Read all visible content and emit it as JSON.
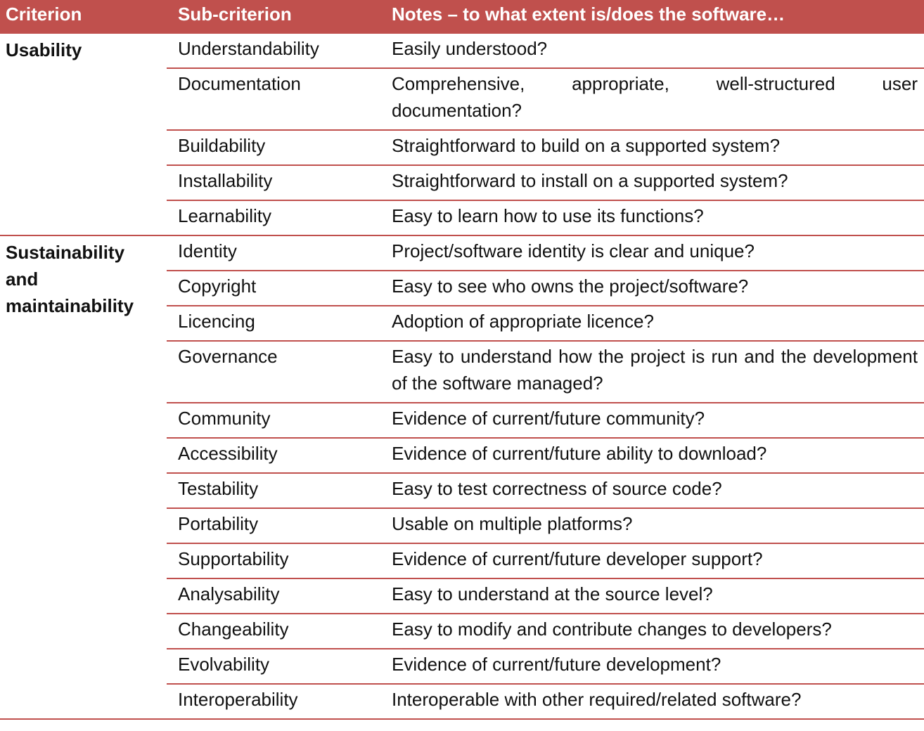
{
  "header": [
    "Criterion",
    "Sub-criterion",
    "Notes – to what extent is/does the software…"
  ],
  "groups": [
    {
      "criterion": "Usability",
      "rows": [
        {
          "sub": "Understandability",
          "notes": "Easily understood?"
        },
        {
          "sub": "Documentation",
          "notes": "Comprehensive, appropriate, well-structured user documentation?"
        },
        {
          "sub": "Buildability",
          "notes": "Straightforward to build on a supported system?"
        },
        {
          "sub": "Installability",
          "notes": "Straightforward to install on a supported system?"
        },
        {
          "sub": "Learnability",
          "notes": "Easy to learn how to use its functions?"
        }
      ]
    },
    {
      "criterion": "Sustainability and maintainability",
      "rows": [
        {
          "sub": "Identity",
          "notes": "Project/software identity is clear and unique?"
        },
        {
          "sub": "Copyright",
          "notes": "Easy to see who owns the project/software?"
        },
        {
          "sub": "Licencing",
          "notes": "Adoption of appropriate licence?"
        },
        {
          "sub": "Governance",
          "notes": "Easy to understand how the project is run and the development of the software managed?"
        },
        {
          "sub": "Community",
          "notes": "Evidence of current/future community?"
        },
        {
          "sub": "Accessibility",
          "notes": "Evidence of current/future ability to download?"
        },
        {
          "sub": "Testability",
          "notes": "Easy to test correctness of source code?"
        },
        {
          "sub": "Portability",
          "notes": "Usable on multiple platforms?"
        },
        {
          "sub": "Supportability",
          "notes": "Evidence of current/future developer support?"
        },
        {
          "sub": "Analysability",
          "notes": "Easy to understand at the source level?"
        },
        {
          "sub": "Changeability",
          "notes": "Easy to modify and contribute changes to developers?"
        },
        {
          "sub": "Evolvability",
          "notes": "Evidence of current/future development?"
        },
        {
          "sub": "Interoperability",
          "notes": "Interoperable with other required/related software?"
        }
      ]
    }
  ]
}
